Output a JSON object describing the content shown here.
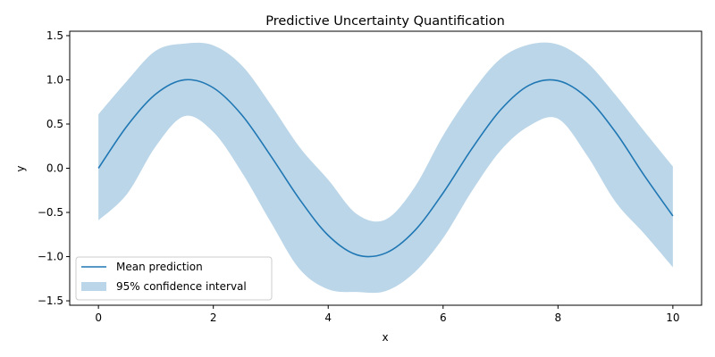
{
  "chart_data": {
    "type": "line",
    "title": "Predictive Uncertainty Quantification",
    "xlabel": "x",
    "ylabel": "y",
    "xlim": [
      -0.5,
      10.5
    ],
    "ylim": [
      -1.55,
      1.55
    ],
    "x_ticks": [
      0,
      2,
      4,
      6,
      8,
      10
    ],
    "x_tick_labels": [
      "0",
      "2",
      "4",
      "6",
      "8",
      "10"
    ],
    "y_ticks": [
      -1.5,
      -1.0,
      -0.5,
      0.0,
      0.5,
      1.0,
      1.5
    ],
    "y_tick_labels": [
      "−1.5",
      "−1.0",
      "−0.5",
      "0.0",
      "0.5",
      "1.0",
      "1.5"
    ],
    "grid": false,
    "legend_position": "lower-left",
    "x": [
      0,
      0.5,
      1.0,
      1.5,
      2.0,
      2.5,
      3.0,
      3.5,
      4.0,
      4.5,
      5.0,
      5.5,
      6.0,
      6.5,
      7.0,
      7.5,
      8.0,
      8.5,
      9.0,
      9.5,
      10.0
    ],
    "series": [
      {
        "name": "Mean prediction",
        "kind": "line",
        "color": "#1f77b4",
        "values": [
          0.0,
          0.48,
          0.84,
          1.0,
          0.91,
          0.6,
          0.14,
          -0.35,
          -0.76,
          -0.98,
          -0.96,
          -0.71,
          -0.28,
          0.22,
          0.66,
          0.94,
          0.99,
          0.8,
          0.41,
          -0.08,
          -0.54
        ]
      },
      {
        "name": "95% confidence interval",
        "kind": "band",
        "color": "#1f77b4",
        "opacity": 0.3,
        "lower": [
          -0.59,
          -0.29,
          0.25,
          0.59,
          0.41,
          -0.05,
          -0.61,
          -1.14,
          -1.37,
          -1.4,
          -1.39,
          -1.18,
          -0.79,
          -0.26,
          0.2,
          0.48,
          0.56,
          0.15,
          -0.38,
          -0.74,
          -1.12
        ],
        "upper": [
          0.61,
          0.99,
          1.33,
          1.41,
          1.39,
          1.16,
          0.72,
          0.24,
          -0.13,
          -0.52,
          -0.58,
          -0.22,
          0.37,
          0.86,
          1.24,
          1.4,
          1.4,
          1.2,
          0.83,
          0.42,
          0.02
        ]
      }
    ]
  }
}
